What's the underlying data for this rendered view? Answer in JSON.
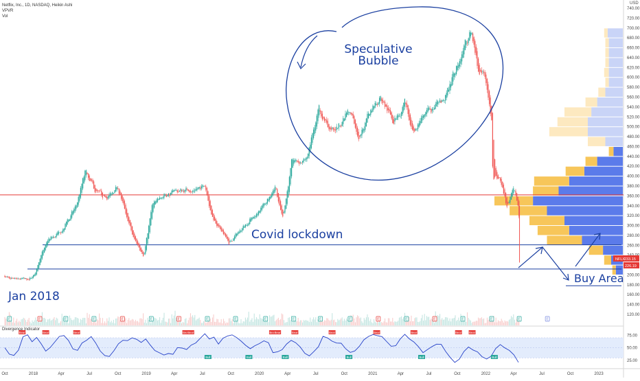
{
  "header": {
    "symbol_line": "Netflix, Inc., 1D, NASDAQ, Heikin Ashi",
    "indicator_1": "VPVR",
    "indicator_2": "Vol"
  },
  "chart_data": {
    "type": "candlestick",
    "price_axis": {
      "unit": "USD",
      "ticks": [
        "740.00",
        "720.00",
        "700.00",
        "680.00",
        "660.00",
        "640.00",
        "620.00",
        "600.00",
        "580.00",
        "560.00",
        "540.00",
        "520.00",
        "500.00",
        "480.00",
        "460.00",
        "440.00",
        "420.00",
        "400.00",
        "380.00",
        "360.00",
        "340.00",
        "320.00",
        "300.00",
        "280.00",
        "260.00",
        "240.00",
        "220.00",
        "200.00",
        "180.00",
        "160.00",
        "140.00",
        "120.00",
        "100.00"
      ],
      "range": [
        90,
        740
      ]
    },
    "time_axis": {
      "ticks": [
        "Oct",
        "2018",
        "Apr",
        "Jul",
        "Oct",
        "2019",
        "Apr",
        "Jul",
        "Oct",
        "2020",
        "Apr",
        "Jul",
        "Oct",
        "2021",
        "Apr",
        "Jul",
        "Oct",
        "2022",
        "Apr",
        "Jul",
        "Oct",
        "2023"
      ],
      "range": [
        "2017-10-01",
        "2023-02-28"
      ]
    },
    "price_path": [
      {
        "date": "2017-10-01",
        "price": 198
      },
      {
        "date": "2017-12-15",
        "price": 190
      },
      {
        "date": "2018-01-05",
        "price": 201
      },
      {
        "date": "2018-02-15",
        "price": 270
      },
      {
        "date": "2018-04-01",
        "price": 290
      },
      {
        "date": "2018-05-20",
        "price": 340
      },
      {
        "date": "2018-06-20",
        "price": 415
      },
      {
        "date": "2018-07-20",
        "price": 370
      },
      {
        "date": "2018-08-25",
        "price": 355
      },
      {
        "date": "2018-10-01",
        "price": 380
      },
      {
        "date": "2018-11-20",
        "price": 275
      },
      {
        "date": "2018-12-24",
        "price": 240
      },
      {
        "date": "2019-01-20",
        "price": 340
      },
      {
        "date": "2019-03-01",
        "price": 360
      },
      {
        "date": "2019-04-20",
        "price": 370
      },
      {
        "date": "2019-06-01",
        "price": 375
      },
      {
        "date": "2019-07-10",
        "price": 380
      },
      {
        "date": "2019-08-01",
        "price": 320
      },
      {
        "date": "2019-09-25",
        "price": 265
      },
      {
        "date": "2019-11-15",
        "price": 300
      },
      {
        "date": "2019-12-25",
        "price": 330
      },
      {
        "date": "2020-01-20",
        "price": 345
      },
      {
        "date": "2020-02-20",
        "price": 385
      },
      {
        "date": "2020-03-16",
        "price": 310
      },
      {
        "date": "2020-04-15",
        "price": 430
      },
      {
        "date": "2020-06-01",
        "price": 430
      },
      {
        "date": "2020-07-10",
        "price": 540
      },
      {
        "date": "2020-08-20",
        "price": 490
      },
      {
        "date": "2020-09-10",
        "price": 500
      },
      {
        "date": "2020-10-15",
        "price": 530
      },
      {
        "date": "2020-11-20",
        "price": 480
      },
      {
        "date": "2020-12-31",
        "price": 540
      },
      {
        "date": "2021-01-25",
        "price": 560
      },
      {
        "date": "2021-03-10",
        "price": 510
      },
      {
        "date": "2021-04-15",
        "price": 550
      },
      {
        "date": "2021-05-15",
        "price": 490
      },
      {
        "date": "2021-07-01",
        "price": 530
      },
      {
        "date": "2021-08-20",
        "price": 550
      },
      {
        "date": "2021-09-20",
        "price": 610
      },
      {
        "date": "2021-10-25",
        "price": 670
      },
      {
        "date": "2021-11-15",
        "price": 690
      },
      {
        "date": "2021-12-10",
        "price": 610
      },
      {
        "date": "2021-12-31",
        "price": 600
      },
      {
        "date": "2022-01-20",
        "price": 510
      },
      {
        "date": "2022-01-24",
        "price": 400
      },
      {
        "date": "2022-02-15",
        "price": 395
      },
      {
        "date": "2022-03-10",
        "price": 340
      },
      {
        "date": "2022-04-01",
        "price": 370
      },
      {
        "date": "2022-04-18",
        "price": 340
      },
      {
        "date": "2022-04-20",
        "price": 225
      }
    ],
    "horizontal_lines": [
      {
        "price": 362,
        "color": "#e53935"
      },
      {
        "price": 261,
        "color": "#1a3fa0"
      },
      {
        "price": 212,
        "color": "#1a3fa0"
      },
      {
        "price": 178,
        "color": "#1a3fa0"
      }
    ],
    "price_labels": [
      {
        "label": "NFLX",
        "value": "233.15",
        "color": "#e53935"
      },
      {
        "value": "226.19",
        "color": "#e53935"
      }
    ],
    "volume_profile": {
      "bins": [
        {
          "price": 690,
          "up": 0.13,
          "down": 0.03
        },
        {
          "price": 670,
          "up": 0.12,
          "down": 0.03
        },
        {
          "price": 650,
          "up": 0.12,
          "down": 0.03
        },
        {
          "price": 630,
          "up": 0.12,
          "down": 0.03
        },
        {
          "price": 610,
          "up": 0.12,
          "down": 0.04
        },
        {
          "price": 590,
          "up": 0.12,
          "down": 0.03
        },
        {
          "price": 570,
          "up": 0.15,
          "down": 0.06
        },
        {
          "price": 550,
          "up": 0.22,
          "down": 0.1
        },
        {
          "price": 530,
          "up": 0.27,
          "down": 0.23
        },
        {
          "price": 510,
          "up": 0.3,
          "down": 0.26
        },
        {
          "price": 490,
          "up": 0.3,
          "down": 0.33
        },
        {
          "price": 470,
          "up": 0.15,
          "down": 0.15
        },
        {
          "price": 450,
          "up": 0.08,
          "down": 0.04
        },
        {
          "price": 430,
          "up": 0.22,
          "down": 0.1
        },
        {
          "price": 410,
          "up": 0.33,
          "down": 0.16
        },
        {
          "price": 390,
          "up": 0.46,
          "down": 0.3
        },
        {
          "price": 370,
          "up": 0.55,
          "down": 0.22
        },
        {
          "price": 350,
          "up": 0.77,
          "down": 0.33
        },
        {
          "price": 330,
          "up": 0.65,
          "down": 0.32
        },
        {
          "price": 310,
          "up": 0.5,
          "down": 0.3
        },
        {
          "price": 290,
          "up": 0.46,
          "down": 0.27
        },
        {
          "price": 270,
          "up": 0.35,
          "down": 0.3
        },
        {
          "price": 250,
          "up": 0.17,
          "down": 0.12
        },
        {
          "price": 230,
          "up": 0.1,
          "down": 0.06
        },
        {
          "price": 210,
          "up": 0.06,
          "down": 0.03
        }
      ],
      "up_color": "#5b7bea",
      "down_color": "#f7c65a",
      "up_color_faded": "#c9d4f7",
      "down_color_faded": "#fde9c0"
    },
    "divergence_indicator": {
      "title": "Divergence Indicator",
      "ticks": [
        "75.00",
        "50.00",
        "25.00"
      ],
      "range": [
        10,
        85
      ],
      "band": [
        30,
        70
      ],
      "series": [
        52,
        40,
        35,
        48,
        72,
        78,
        65,
        70,
        58,
        45,
        52,
        62,
        70,
        75,
        64,
        50,
        45,
        58,
        66,
        70,
        60,
        46,
        34,
        30,
        42,
        56,
        64,
        66,
        72,
        69,
        62,
        70,
        58,
        44,
        40,
        33,
        36,
        40,
        48,
        52,
        45,
        55,
        62,
        70,
        76,
        70,
        74,
        60,
        68,
        74,
        78,
        72,
        64,
        56,
        48,
        52,
        60,
        66,
        58,
        42,
        40,
        48,
        56,
        64,
        62,
        50,
        42,
        35,
        42,
        50,
        70,
        72,
        66,
        60,
        58,
        48,
        40,
        44,
        55,
        64,
        72,
        76,
        74,
        70,
        60,
        52,
        56,
        66,
        75,
        70,
        62,
        50,
        40,
        44,
        52,
        60,
        55,
        40,
        30,
        20,
        28,
        44,
        52,
        48,
        40,
        30,
        25,
        34,
        48,
        58,
        52,
        44,
        38,
        20
      ]
    },
    "colors": {
      "up": "#26a69a",
      "down": "#ef5350",
      "annotation": "#1a3fa0"
    }
  },
  "annotations": {
    "bubble_label_line1": "Speculative",
    "bubble_label_line2": "Bubble",
    "covid_label": "Covid lockdown",
    "jan_label": "Jan 2018",
    "buy_area_label": "Buy Area"
  },
  "icons": {
    "earnings_marker": "E",
    "bull_label": "Bull",
    "bear_label": "Bear"
  }
}
